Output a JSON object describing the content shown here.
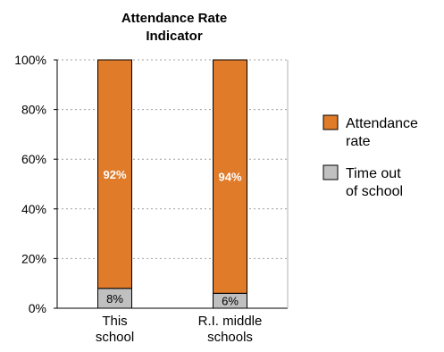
{
  "chart_data": {
    "type": "bar",
    "stacked": true,
    "title": [
      "Attendance Rate",
      "Indicator"
    ],
    "categories": [
      [
        "This",
        "school"
      ],
      [
        "R.I. middle",
        "schools"
      ]
    ],
    "series": [
      {
        "name": "Time out of school",
        "legend_lines": [
          "Time out",
          "of school"
        ],
        "values": [
          8,
          6
        ],
        "labels": [
          "8%",
          "6%"
        ],
        "color": "#c0c0c0"
      },
      {
        "name": "Attendance rate",
        "legend_lines": [
          "Attendance",
          "rate"
        ],
        "values": [
          92,
          94
        ],
        "labels": [
          "92%",
          "94%"
        ],
        "color": "#e07b2a"
      }
    ],
    "ylim": [
      0,
      100
    ],
    "yticks": [
      "0%",
      "20%",
      "40%",
      "60%",
      "80%",
      "100%"
    ],
    "grid": "dotted horizontal",
    "legend": "right"
  }
}
